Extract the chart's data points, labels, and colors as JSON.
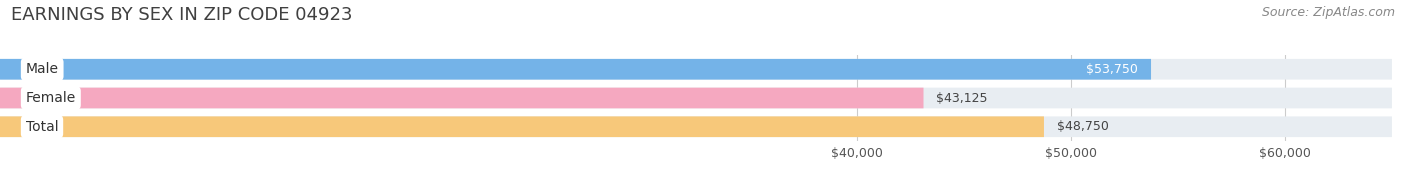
{
  "title": "EARNINGS BY SEX IN ZIP CODE 04923",
  "source": "Source: ZipAtlas.com",
  "categories": [
    "Male",
    "Female",
    "Total"
  ],
  "values": [
    53750,
    43125,
    48750
  ],
  "bar_colors": [
    "#74b3e8",
    "#f5a8c0",
    "#f7c87a"
  ],
  "value_labels": [
    "$53,750",
    "$43,125",
    "$48,750"
  ],
  "value_label_inside": [
    true,
    false,
    false
  ],
  "xlim_min": 0,
  "xlim_max": 65000,
  "xticks": [
    40000,
    50000,
    60000
  ],
  "xtick_labels": [
    "$40,000",
    "$50,000",
    "$60,000"
  ],
  "bar_height": 0.72,
  "bar_gap": 0.28,
  "background_color": "#ffffff",
  "bar_bg_color": "#e8edf2",
  "title_fontsize": 13,
  "source_fontsize": 9,
  "value_fontsize": 9,
  "cat_fontsize": 10
}
